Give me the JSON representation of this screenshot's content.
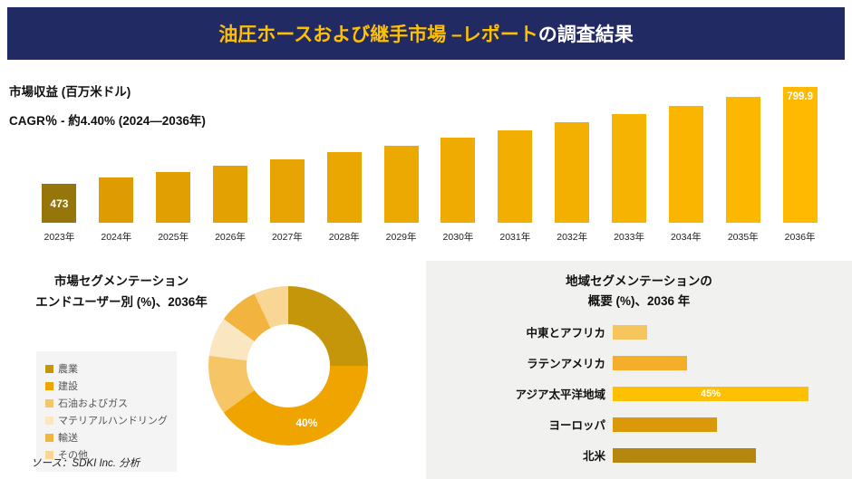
{
  "header": {
    "title_highlight": "油圧ホースおよび継手市場 –レポート",
    "title_rest": "の調査結果",
    "background": "#222a63",
    "highlight_color": "#ffc000",
    "text_color": "#ffffff"
  },
  "source": "ソース：SDKI Inc. 分析",
  "chart_data": [
    {
      "type": "bar",
      "title": "市場収益 (百万米ドル)",
      "subtitle": "CAGR％ - 約4.40% (2024―2036年)",
      "categories": [
        "2023年",
        "2024年",
        "2025年",
        "2026年",
        "2027年",
        "2028年",
        "2029年",
        "2030年",
        "2031年",
        "2032年",
        "2033年",
        "2034年",
        "2035年",
        "2036年"
      ],
      "values": [
        473,
        492,
        512,
        533,
        555,
        578,
        602,
        627,
        653,
        680,
        708,
        737,
        767,
        799.9
      ],
      "first_label": "473",
      "last_label": "799.9",
      "ylim": [
        0,
        800
      ],
      "first_bar_color": "#96760a",
      "bar_color_range": [
        "#df9c02",
        "#ffba00"
      ]
    },
    {
      "type": "pie",
      "title_line1": "市場セグメンテーション",
      "title_line2": "エンドユーザー別 (%)、2036年",
      "segments": [
        {
          "label": "農業",
          "value": 25,
          "color": "#c6960a"
        },
        {
          "label": "建設",
          "value": 40,
          "color": "#efa400",
          "value_label": "40%"
        },
        {
          "label": "石油およびガス",
          "value": 12,
          "color": "#f6c566"
        },
        {
          "label": "マテリアルハンドリング",
          "value": 8,
          "color": "#fae6c0"
        },
        {
          "label": "輸送",
          "value": 8,
          "color": "#f2b43e"
        },
        {
          "label": "その他",
          "value": 7,
          "color": "#f8d694"
        }
      ]
    },
    {
      "type": "bar-horizontal",
      "title_line1": "地域セグメンテーションの",
      "title_line2": "概要 (%)、2036 年",
      "xlim": [
        0,
        50
      ],
      "items": [
        {
          "label": "中東とアフリカ",
          "value": 8,
          "color": "#f7c55e"
        },
        {
          "label": "ラテンアメリカ",
          "value": 17,
          "color": "#f5ae2a"
        },
        {
          "label": "アジア太平洋地域",
          "value": 45,
          "color": "#ffc003",
          "value_label": "45%"
        },
        {
          "label": "ヨーロッパ",
          "value": 24,
          "color": "#d9990a"
        },
        {
          "label": "北米",
          "value": 33,
          "color": "#b5870e"
        }
      ]
    }
  ]
}
